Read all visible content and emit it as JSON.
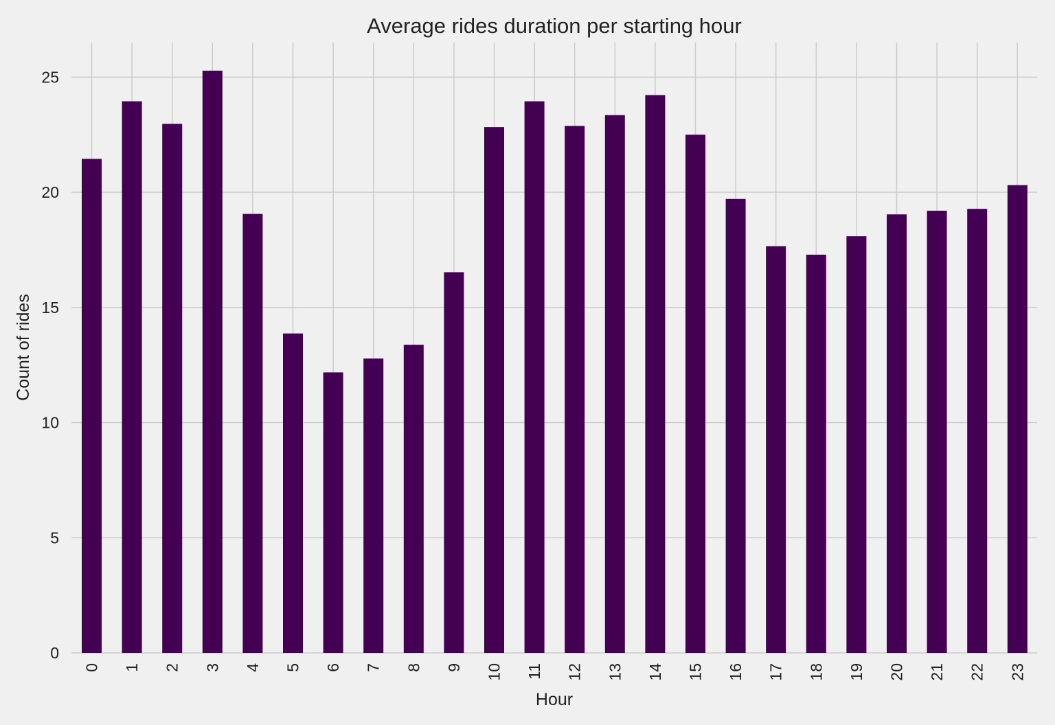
{
  "chart_data": {
    "type": "bar",
    "title": "Average rides duration per starting hour",
    "xlabel": "Hour",
    "ylabel": "Count of rides",
    "categories": [
      "0",
      "1",
      "2",
      "3",
      "4",
      "5",
      "6",
      "7",
      "8",
      "9",
      "10",
      "11",
      "12",
      "13",
      "14",
      "15",
      "16",
      "17",
      "18",
      "19",
      "20",
      "21",
      "22",
      "23"
    ],
    "values": [
      21.45,
      23.95,
      22.97,
      25.28,
      19.06,
      13.87,
      12.18,
      12.78,
      13.38,
      16.53,
      22.83,
      23.95,
      22.88,
      23.35,
      24.22,
      22.5,
      19.71,
      17.66,
      17.29,
      18.09,
      19.04,
      19.2,
      19.28,
      20.31
    ],
    "yticks": [
      "0",
      "5",
      "10",
      "15",
      "20",
      "25"
    ],
    "ylim": [
      0,
      26.5
    ],
    "grid": true,
    "colors": {
      "bar": "#440154",
      "background": "#f0f0f0",
      "grid": "#cbcbcb"
    }
  }
}
